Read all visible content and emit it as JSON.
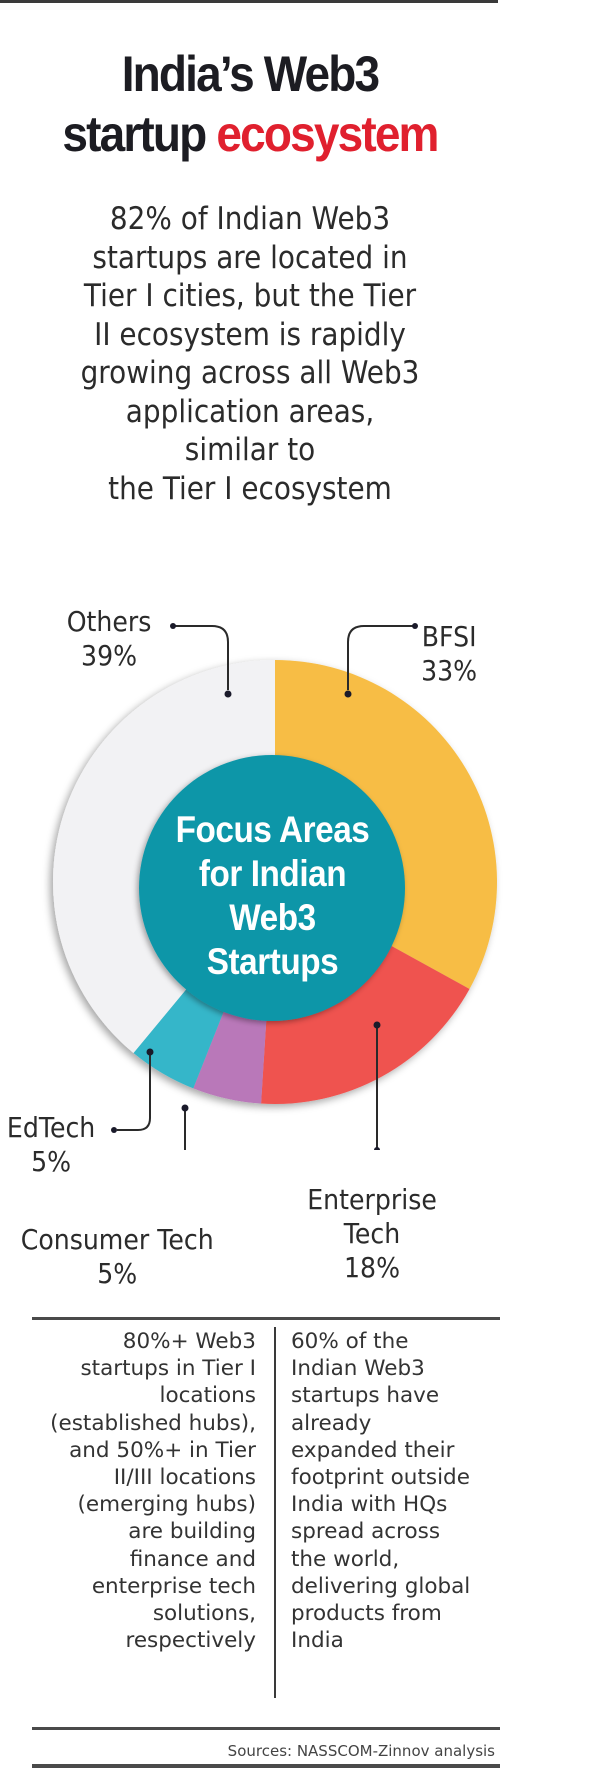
{
  "title": {
    "line1": "India’s Web3",
    "line2_plain": "startup",
    "line2_accent": "ecosystem"
  },
  "intro_lines": [
    "82% of Indian Web3",
    "startups are located in",
    "Tier I cities, but the Tier",
    "II ecosystem is rapidly",
    "growing across all Web3",
    "application areas,",
    "similar to",
    "the Tier I ecosystem"
  ],
  "chart_data": {
    "type": "pie",
    "subtype": "donut",
    "title": "Focus Areas for Indian Web3 Startups",
    "center_label_lines": [
      "Focus Areas",
      "for Indian",
      "Web3",
      "Startups"
    ],
    "categories": [
      "BFSI",
      "Enterprise Tech",
      "Consumer Tech",
      "EdTech",
      "Others"
    ],
    "values": [
      33,
      18,
      5,
      5,
      39
    ],
    "unit": "%",
    "colors": [
      "#f7bd45",
      "#ef5350",
      "#b978b9",
      "#35b6c9",
      "#f2f2f4"
    ],
    "center_color": "#0e96a8",
    "start_angle": "12 o'clock, clockwise",
    "labels": [
      {
        "name": "Others",
        "value": "39%"
      },
      {
        "name": "BFSI",
        "value": "33%"
      },
      {
        "name": "EdTech",
        "value": "5%"
      },
      {
        "name": "Consumer Tech",
        "value": "5%"
      },
      {
        "name": "Enterprise Tech",
        "value": "18%",
        "name_lines": [
          "Enterprise",
          "Tech"
        ]
      }
    ]
  },
  "notes": {
    "left_lines": [
      "80%+ Web3",
      "startups in Tier I",
      "locations",
      "(established hubs),",
      "and 50%+ in Tier",
      "II/III locations",
      "(emerging hubs)",
      "are building",
      "finance and",
      "enterprise tech",
      "solutions,",
      "respectively"
    ],
    "right_lines": [
      "60% of the",
      "Indian Web3",
      "startups have",
      "already",
      "expanded their",
      "footprint outside",
      "India with HQs",
      "spread across",
      "the world,",
      "delivering global",
      "products from",
      "India"
    ]
  },
  "source": "Sources: NASSCOM-Zinnov analysis",
  "colors": {
    "accent_red": "#e0202e",
    "title_dark": "#1c1c22",
    "rule": "#3a3a3a"
  }
}
